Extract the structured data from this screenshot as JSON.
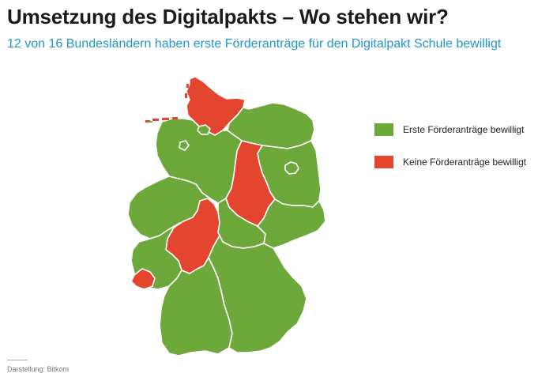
{
  "header": {
    "title": "Umsetzung des Digitalpakts – Wo stehen wir?",
    "subtitle": "12 von 16 Bundesländern haben erste Förderanträge für den Digitalpakt Schule bewilligt"
  },
  "legend": {
    "approved": {
      "label": "Erste Förderanträge bewilligt",
      "color": "#6ca93a"
    },
    "not_approved": {
      "label": "Keine Förderanträge bewilligt",
      "color": "#e3452f"
    }
  },
  "map": {
    "states": [
      {
        "name": "Schleswig-Holstein",
        "status": "not_approved"
      },
      {
        "name": "Mecklenburg-Vorpommern",
        "status": "approved"
      },
      {
        "name": "Hamburg",
        "status": "approved"
      },
      {
        "name": "Bremen",
        "status": "approved"
      },
      {
        "name": "Niedersachsen",
        "status": "approved"
      },
      {
        "name": "Berlin",
        "status": "approved"
      },
      {
        "name": "Brandenburg",
        "status": "approved"
      },
      {
        "name": "Sachsen-Anhalt",
        "status": "not_approved"
      },
      {
        "name": "Nordrhein-Westfalen",
        "status": "approved"
      },
      {
        "name": "Hessen",
        "status": "not_approved"
      },
      {
        "name": "Thüringen",
        "status": "approved"
      },
      {
        "name": "Sachsen",
        "status": "approved"
      },
      {
        "name": "Rheinland-Pfalz",
        "status": "approved"
      },
      {
        "name": "Saarland",
        "status": "not_approved"
      },
      {
        "name": "Baden-Württemberg",
        "status": "approved"
      },
      {
        "name": "Bayern",
        "status": "approved"
      }
    ]
  },
  "footer": {
    "source": "Darstellung: Bitkom"
  }
}
